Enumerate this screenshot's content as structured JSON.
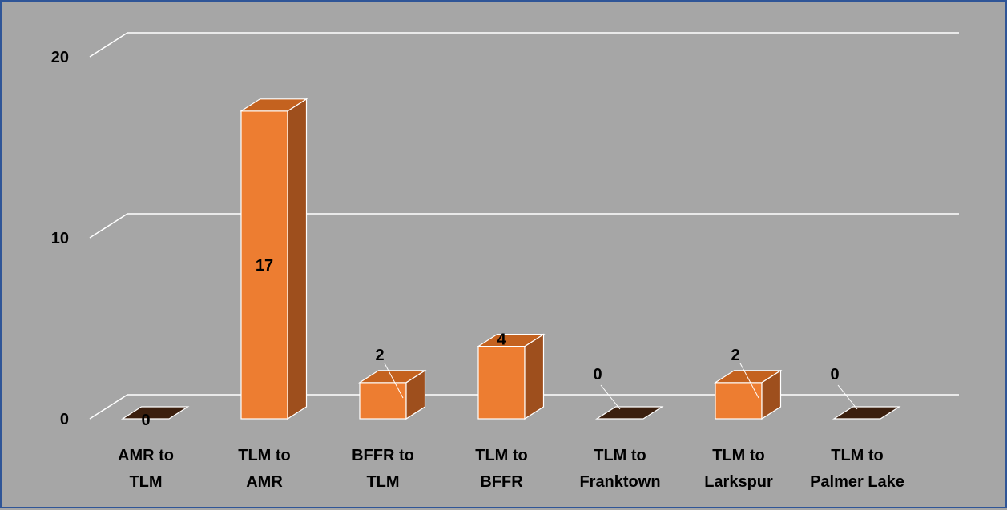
{
  "chart_data": {
    "type": "bar",
    "style": "3d-column",
    "categories": [
      [
        "AMR to",
        "TLM"
      ],
      [
        "TLM to",
        "AMR"
      ],
      [
        "BFFR to",
        "TLM"
      ],
      [
        "TLM to",
        "BFFR"
      ],
      [
        "TLM to",
        "Franktown"
      ],
      [
        "TLM to",
        "Larkspur"
      ],
      [
        "TLM to",
        "Palmer Lake"
      ]
    ],
    "values": [
      0,
      17,
      2,
      4,
      0,
      2,
      0
    ],
    "data_labels": [
      "0",
      "17",
      "2",
      "4",
      "0",
      "2",
      "0"
    ],
    "yticks": [
      0,
      10,
      20
    ],
    "ytick_labels": [
      "0",
      "10",
      "20"
    ],
    "ylim": [
      0,
      20
    ],
    "title": "",
    "xlabel": "",
    "ylabel": "",
    "grid": true,
    "legend": "none",
    "colors": {
      "bar_front": "#ed7d31",
      "bar_side": "#9e4f1d",
      "bar_top": "#c4621f",
      "zero_fill": "#3b1f0e",
      "gridline": "#ffffff",
      "background": "#a6a6a6",
      "border": "#2f5597"
    }
  }
}
